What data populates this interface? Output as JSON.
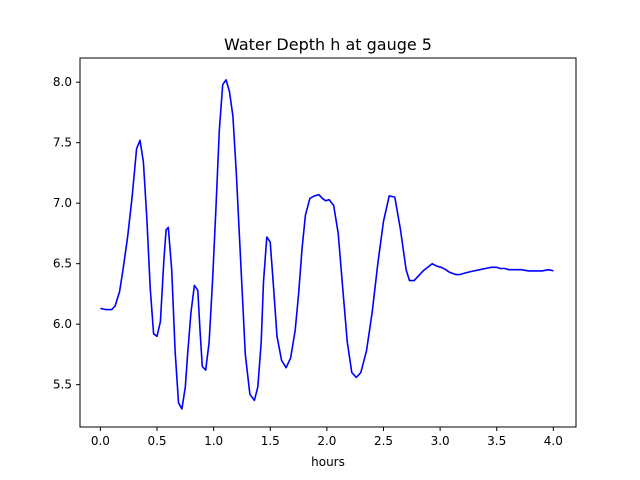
{
  "chart_data": {
    "type": "line",
    "title": "Water Depth h at gauge 5",
    "xlabel": "hours",
    "ylabel": "",
    "xlim": [
      -0.18,
      4.2
    ],
    "ylim": [
      5.15,
      8.2
    ],
    "xticks": [
      0.0,
      0.5,
      1.0,
      1.5,
      2.0,
      2.5,
      3.0,
      3.5,
      4.0
    ],
    "xtick_labels": [
      "0.0",
      "0.5",
      "1.0",
      "1.5",
      "2.0",
      "2.5",
      "3.0",
      "3.5",
      "4.0"
    ],
    "yticks": [
      5.5,
      6.0,
      6.5,
      7.0,
      7.5,
      8.0
    ],
    "ytick_labels": [
      "5.5",
      "6.0",
      "6.5",
      "7.0",
      "7.5",
      "8.0"
    ],
    "grid": false,
    "legend": "none",
    "series": [
      {
        "color": "#0000ff",
        "x": [
          0.0,
          0.05,
          0.1,
          0.13,
          0.17,
          0.2,
          0.24,
          0.28,
          0.32,
          0.35,
          0.38,
          0.41,
          0.44,
          0.47,
          0.5,
          0.53,
          0.56,
          0.58,
          0.6,
          0.63,
          0.66,
          0.69,
          0.72,
          0.75,
          0.77,
          0.8,
          0.83,
          0.86,
          0.88,
          0.9,
          0.93,
          0.96,
          0.99,
          1.02,
          1.05,
          1.08,
          1.11,
          1.14,
          1.17,
          1.2,
          1.24,
          1.28,
          1.32,
          1.36,
          1.39,
          1.42,
          1.44,
          1.47,
          1.5,
          1.53,
          1.56,
          1.6,
          1.64,
          1.68,
          1.72,
          1.75,
          1.78,
          1.81,
          1.85,
          1.89,
          1.93,
          1.96,
          1.99,
          2.02,
          2.06,
          2.1,
          2.14,
          2.18,
          2.22,
          2.26,
          2.3,
          2.35,
          2.4,
          2.45,
          2.5,
          2.55,
          2.6,
          2.65,
          2.7,
          2.73,
          2.77,
          2.81,
          2.85,
          2.89,
          2.93,
          2.97,
          3.01,
          3.05,
          3.08,
          3.11,
          3.14,
          3.17,
          3.21,
          3.25,
          3.3,
          3.35,
          3.4,
          3.45,
          3.48,
          3.5,
          3.53,
          3.57,
          3.61,
          3.66,
          3.72,
          3.78,
          3.84,
          3.9,
          3.96,
          4.0
        ],
        "y": [
          6.13,
          6.12,
          6.12,
          6.15,
          6.27,
          6.45,
          6.72,
          7.05,
          7.45,
          7.52,
          7.34,
          6.88,
          6.3,
          5.92,
          5.9,
          6.02,
          6.52,
          6.78,
          6.8,
          6.45,
          5.78,
          5.35,
          5.3,
          5.48,
          5.75,
          6.1,
          6.32,
          6.28,
          5.95,
          5.65,
          5.62,
          5.85,
          6.35,
          6.95,
          7.6,
          7.98,
          8.02,
          7.92,
          7.72,
          7.25,
          6.5,
          5.75,
          5.42,
          5.37,
          5.48,
          5.85,
          6.35,
          6.72,
          6.68,
          6.3,
          5.9,
          5.7,
          5.64,
          5.72,
          5.95,
          6.25,
          6.62,
          6.9,
          7.04,
          7.06,
          7.07,
          7.04,
          7.02,
          7.03,
          6.98,
          6.75,
          6.3,
          5.85,
          5.6,
          5.56,
          5.6,
          5.78,
          6.1,
          6.5,
          6.85,
          7.06,
          7.05,
          6.78,
          6.45,
          6.36,
          6.36,
          6.4,
          6.44,
          6.47,
          6.5,
          6.48,
          6.47,
          6.45,
          6.43,
          6.42,
          6.41,
          6.41,
          6.42,
          6.43,
          6.44,
          6.45,
          6.46,
          6.47,
          6.47,
          6.47,
          6.46,
          6.46,
          6.45,
          6.45,
          6.45,
          6.44,
          6.44,
          6.44,
          6.45,
          6.44
        ]
      }
    ]
  }
}
